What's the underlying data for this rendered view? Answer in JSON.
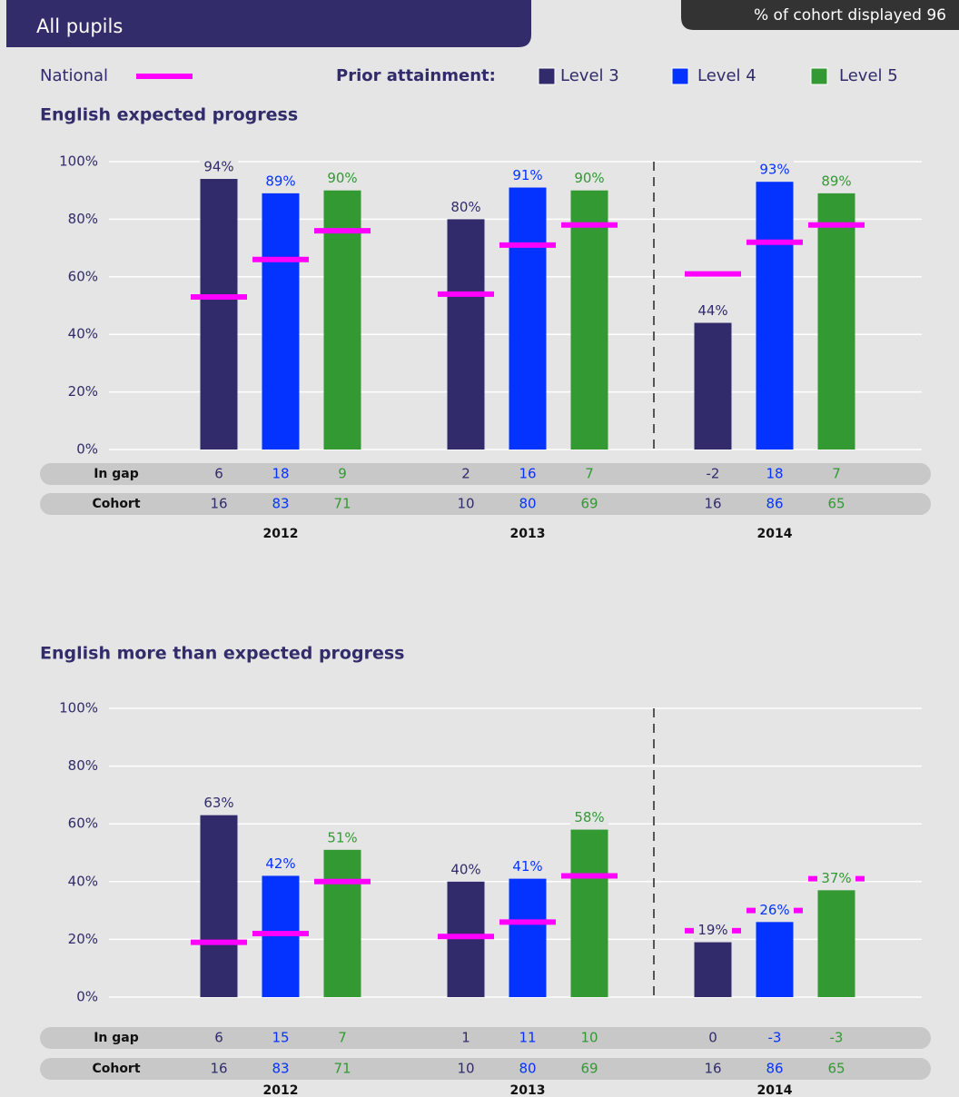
{
  "header": {
    "title": "All pupils",
    "cohort_label": "% of cohort displayed",
    "cohort_value": 96
  },
  "legend": {
    "national": "National",
    "prior": "Prior attainment:"
  },
  "chart_data": [
    {
      "type": "bar",
      "title": "English expected progress",
      "categories": [
        "2012",
        "2013",
        "2014"
      ],
      "row_labels": [
        "In gap",
        "Cohort"
      ],
      "ylim": [
        0,
        100
      ],
      "yticks": [
        {
          "value": 0,
          "label": "0%"
        },
        {
          "value": 20,
          "label": "20%"
        },
        {
          "value": 40,
          "label": "40%"
        },
        {
          "value": 60,
          "label": "60%"
        },
        {
          "value": 80,
          "label": "80%"
        },
        {
          "value": 100,
          "label": "100%"
        }
      ],
      "grid": true,
      "national_color": "#ff00ff",
      "series": [
        {
          "name": "Level 3",
          "color": "#322b6b",
          "values": [
            94,
            80,
            44
          ],
          "value_labels": [
            "94%",
            "80%",
            "44%"
          ],
          "national": [
            53,
            54,
            61
          ],
          "in_gap": [
            6,
            2,
            -2
          ],
          "cohort": [
            16,
            10,
            16
          ]
        },
        {
          "name": "Level 4",
          "color": "#0433ff",
          "values": [
            89,
            91,
            93
          ],
          "value_labels": [
            "89%",
            "91%",
            "93%"
          ],
          "national": [
            66,
            71,
            72
          ],
          "in_gap": [
            18,
            16,
            18
          ],
          "cohort": [
            83,
            80,
            86
          ]
        },
        {
          "name": "Level 5",
          "color": "#339933",
          "values": [
            90,
            90,
            89
          ],
          "value_labels": [
            "90%",
            "90%",
            "89%"
          ],
          "national": [
            76,
            78,
            78
          ],
          "in_gap": [
            9,
            7,
            7
          ],
          "cohort": [
            71,
            69,
            65
          ]
        }
      ]
    },
    {
      "type": "bar",
      "title": "English more than expected progress",
      "categories": [
        "2012",
        "2013",
        "2014"
      ],
      "row_labels": [
        "In gap",
        "Cohort"
      ],
      "ylim": [
        0,
        100
      ],
      "yticks": [
        {
          "value": 0,
          "label": "0%"
        },
        {
          "value": 20,
          "label": "20%"
        },
        {
          "value": 40,
          "label": "40%"
        },
        {
          "value": 60,
          "label": "60%"
        },
        {
          "value": 80,
          "label": "80%"
        },
        {
          "value": 100,
          "label": "100%"
        }
      ],
      "grid": true,
      "national_color": "#ff00ff",
      "series": [
        {
          "name": "Level 3",
          "color": "#322b6b",
          "values": [
            63,
            40,
            19
          ],
          "value_labels": [
            "63%",
            "40%",
            "19%"
          ],
          "national": [
            19,
            21,
            23
          ],
          "in_gap": [
            6,
            1,
            0
          ],
          "cohort": [
            16,
            10,
            16
          ]
        },
        {
          "name": "Level 4",
          "color": "#0433ff",
          "values": [
            42,
            41,
            26
          ],
          "value_labels": [
            "42%",
            "41%",
            "26%"
          ],
          "national": [
            22,
            26,
            30
          ],
          "in_gap": [
            15,
            11,
            -3
          ],
          "cohort": [
            83,
            80,
            86
          ]
        },
        {
          "name": "Level 5",
          "color": "#339933",
          "values": [
            51,
            58,
            37
          ],
          "value_labels": [
            "51%",
            "58%",
            "37%"
          ],
          "national": [
            40,
            42,
            41
          ],
          "in_gap": [
            7,
            10,
            -3
          ],
          "cohort": [
            71,
            69,
            65
          ]
        }
      ]
    }
  ]
}
